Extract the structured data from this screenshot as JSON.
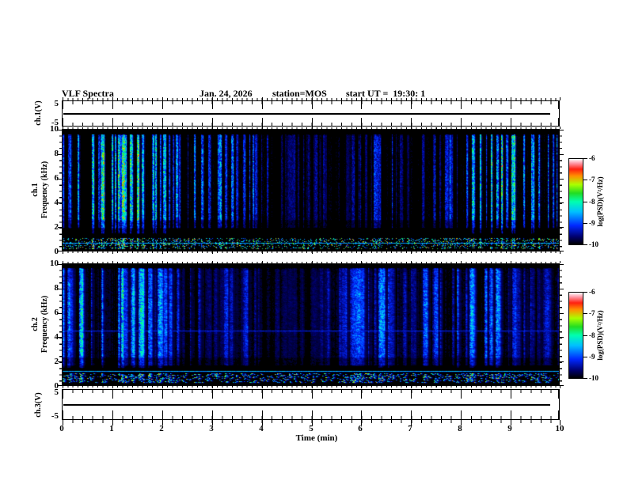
{
  "header": {
    "title": "VLF Spectra",
    "date": "Jan. 24, 2026",
    "station": "station=MOS",
    "start_ut": "start UT =  19:30: 1"
  },
  "time_axis": {
    "label": "Time (min)",
    "range": [
      0,
      10
    ],
    "unit": "min",
    "major_tick_labels": [
      "0",
      "1",
      "2",
      "3",
      "4",
      "5",
      "6",
      "7",
      "8",
      "9",
      "10"
    ]
  },
  "freq_axis": {
    "label": "Frequency (kHz)",
    "range": [
      0,
      10
    ],
    "major_tick_labels": [
      "0",
      "2",
      "4",
      "6",
      "8",
      "10"
    ]
  },
  "volt_axis": {
    "range": [
      -5,
      5
    ],
    "top_tick_label": "5",
    "bottom_tick_label": "-5"
  },
  "panels": {
    "ch1_wave": {
      "ylabel": "ch.1(V)"
    },
    "ch1_spec": {
      "channel": "ch.1",
      "ylabel": "Frequency (kHz)"
    },
    "ch2_spec": {
      "channel": "ch.2",
      "ylabel": "Frequency (kHz)"
    },
    "ch3_wave": {
      "ylabel": "ch.3(V)"
    }
  },
  "colorbar": {
    "label": "log(PSD)(V²/Hz)",
    "tick_labels": [
      "-6",
      "-7",
      "-8",
      "-9",
      "-10"
    ],
    "range": [
      -10,
      -6
    ]
  },
  "colors": {
    "background": "#ffffff",
    "foreground": "#000000",
    "spectrogram_background": "#000000",
    "colormap_stops": [
      [
        0.0,
        "#000000"
      ],
      [
        0.09,
        "#00006e"
      ],
      [
        0.22,
        "#0028ff"
      ],
      [
        0.38,
        "#00c0ff"
      ],
      [
        0.5,
        "#00ffb0"
      ],
      [
        0.6,
        "#22dd22"
      ],
      [
        0.7,
        "#aaff00"
      ],
      [
        0.8,
        "#ff9100"
      ],
      [
        0.88,
        "#ff2010"
      ],
      [
        0.95,
        "#ff9aa8"
      ],
      [
        1.0,
        "#ffffff"
      ]
    ]
  },
  "chart_data": [
    {
      "panel": "ch.1 waveform",
      "type": "line",
      "ylabel": "ch.1(V)",
      "y_range_V": [
        -5,
        5
      ],
      "x_range_min": [
        0,
        10
      ],
      "series": [
        {
          "name": "ch.1 voltage",
          "description": "flat trace at 0 V for the whole 10-minute record",
          "x": [
            0,
            10
          ],
          "y": [
            0,
            0
          ]
        }
      ]
    },
    {
      "panel": "ch.1 spectrogram",
      "type": "heatmap",
      "x_range_min": [
        0,
        10
      ],
      "y_range_kHz": [
        0,
        10
      ],
      "z_range_logPSD": [
        -10,
        -6
      ],
      "description": "dense quasi-periodic broadband impulsive bursts (vertical striations, sferics) between ~2 and 9.6 kHz on black background; quiet band ~1.1-1.9 kHz; dense colored speckle band ~0.15-1.05 kHz with a narrowband horizontal line near 0.6 kHz; black above 9.6 kHz; occasional red hot pixels",
      "render": {
        "seed": 20260124,
        "burst_prob": 0.42,
        "burst_width": 2.4,
        "gap_width": 5.0,
        "base_level": 0.05,
        "h_blend": 0.15,
        "v_blend": 0.32,
        "red_prob": 0.003,
        "band_khz": [
          2.25,
          9.62
        ],
        "speckle_band_khz": [
          0.15,
          1.05
        ],
        "speckle_density": 0.5,
        "lines_khz": [
          {
            "f": 0.62,
            "v": 0.27,
            "jitter": 0.14
          }
        ]
      }
    },
    {
      "panel": "ch.2 spectrogram",
      "type": "heatmap",
      "x_range_min": [
        0,
        10
      ],
      "y_range_kHz": [
        0,
        10
      ],
      "z_range_logPSD": [
        -10,
        -6
      ],
      "description": "same burst pattern as ch.1 but columns are wider, more diffuse blue-green; weak narrowband line near 4.45 kHz; speckle band ~0.2-0.95 kHz with a horizontal line near 1.15 kHz; black above 9.65 kHz",
      "render": {
        "seed": 19300101,
        "burst_prob": 0.5,
        "burst_width": 4.2,
        "gap_width": 4.0,
        "base_level": 0.1,
        "h_blend": 0.45,
        "v_blend": 0.35,
        "red_prob": 0.004,
        "band_khz": [
          2.0,
          9.65
        ],
        "speckle_band_khz": [
          0.2,
          0.95
        ],
        "speckle_density": 0.33,
        "lines_khz": [
          {
            "f": 1.15,
            "v": 0.3,
            "jitter": 0.12
          },
          {
            "f": 4.45,
            "v": 0.16,
            "jitter": 0.07
          }
        ]
      }
    },
    {
      "panel": "ch.3 waveform",
      "type": "line",
      "ylabel": "ch.3(V)",
      "y_range_V": [
        -5,
        5
      ],
      "x_range_min": [
        0,
        10
      ],
      "series": [
        {
          "name": "ch.3 voltage",
          "description": "flat trace at 0 V for the whole 10-minute record",
          "x": [
            0,
            10
          ],
          "y": [
            0,
            0
          ]
        }
      ]
    }
  ]
}
